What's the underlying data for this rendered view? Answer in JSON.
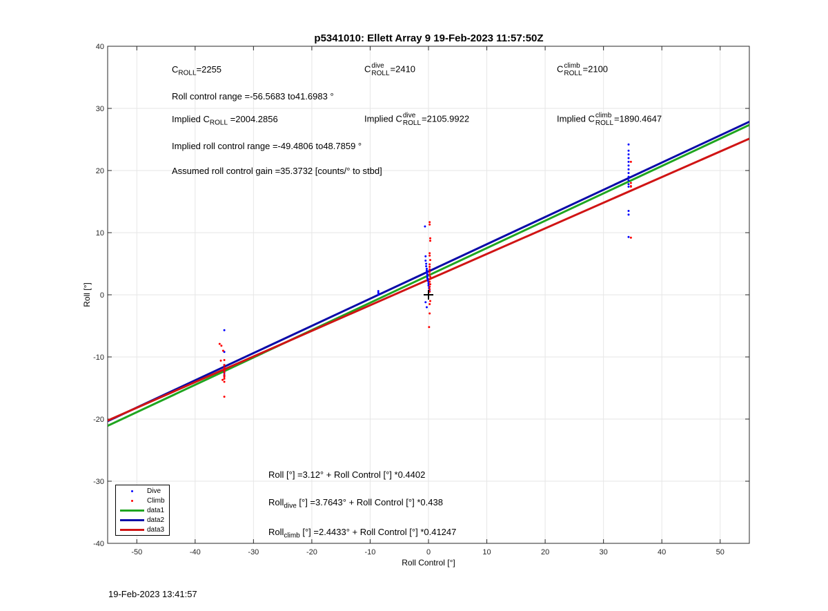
{
  "figure": {
    "title": "p5341010: Ellett Array 9 19-Feb-2023 11:57:50Z",
    "timestamp": "19-Feb-2023 13:41:57"
  },
  "annotations": {
    "c_roll": {
      "base": "C",
      "sub": "ROLL",
      "text": "=2255"
    },
    "c_roll_dive": {
      "base": "C",
      "sup": "dive",
      "sub": "ROLL",
      "text": "=2410"
    },
    "c_roll_climb": {
      "base": "C",
      "sup": "climb",
      "sub": "ROLL",
      "text": "=2100"
    },
    "roll_control_range": "Roll control range =-56.5683 to41.6983 °",
    "implied_c_roll": {
      "prefix": "Implied C",
      "sub": "ROLL",
      "text": " =2004.2856"
    },
    "implied_c_roll_dive": {
      "prefix": "Implied C",
      "sup": "dive",
      "sub": "ROLL",
      "text": "=2105.9922"
    },
    "implied_c_roll_climb": {
      "prefix": "Implied C",
      "sup": "climb",
      "sub": "ROLL",
      "text": "=1890.4647"
    },
    "implied_range": "Implied roll control range =-49.4806 to48.7859 °",
    "gain": "Assumed roll control gain =35.3732 [counts/° to stbd]",
    "fit_all": "Roll [°] =3.12° + Roll Control [°] *0.4402",
    "fit_dive": {
      "prefix": "Roll",
      "sub": "dive",
      "text": " [°] =3.7643° + Roll Control [°] *0.438"
    },
    "fit_climb": {
      "prefix": "Roll",
      "sub": "climb",
      "text": " [°] =2.4433° + Roll Control [°] *0.41247"
    }
  },
  "chart_data": {
    "type": "scatter",
    "xlabel": "Roll Control [°]",
    "ylabel": "Roll [°]",
    "xlim": [
      -55,
      55
    ],
    "ylim": [
      -40,
      40
    ],
    "xticks": [
      -50,
      -40,
      -30,
      -20,
      -10,
      0,
      10,
      20,
      30,
      40,
      50
    ],
    "yticks": [
      -40,
      -30,
      -20,
      -10,
      0,
      10,
      20,
      30,
      40
    ],
    "grid": true,
    "legend_position": "bottom-left",
    "colors": {
      "dive": "#0000ff",
      "climb": "#ff0000",
      "data1": "#1fa51f",
      "data2": "#0a0aa8",
      "data3": "#d01414"
    },
    "series": [
      {
        "name": "Dive",
        "kind": "points",
        "color": "#0000ff",
        "x": [
          -35,
          -35,
          -35,
          -35,
          -35,
          -35,
          -35,
          -35,
          -8.6,
          -8.6,
          -8.6,
          -0.6,
          -0.5,
          -0.5,
          -0.4,
          -0.4,
          -0.3,
          -0.3,
          -0.3,
          -0.2,
          -0.2,
          -0.2,
          -0.1,
          -0.1,
          0,
          0,
          0,
          0.1,
          0.1,
          0.2,
          -0.5,
          -0.3,
          -0.2,
          34.3,
          34.3,
          34.3,
          34.3,
          34.3,
          34.3,
          34.3,
          34.3,
          34.3,
          34.3,
          34.3,
          34.3,
          34.3,
          34.3,
          34.3
        ],
        "y": [
          -5.7,
          -9.2,
          -11.3,
          -11.8,
          -12.1,
          -12.6,
          -13.0,
          -12.3,
          0.0,
          0.3,
          0.6,
          11.0,
          6.2,
          5.5,
          5.0,
          4.6,
          4.2,
          3.9,
          3.6,
          3.3,
          3.0,
          2.7,
          2.5,
          2.3,
          2.1,
          1.8,
          1.5,
          1.2,
          1.0,
          0.6,
          -1.2,
          -2.0,
          3.2,
          24.2,
          23.2,
          22.6,
          22.0,
          21.4,
          20.8,
          20.2,
          19.6,
          19.0,
          18.4,
          17.8,
          17.4,
          13.5,
          12.9,
          9.3
        ]
      },
      {
        "name": "Climb",
        "kind": "points",
        "color": "#ff0000",
        "x": [
          -35.8,
          -35.5,
          -35.2,
          -35.0,
          -35.0,
          -35.0,
          -35.0,
          -35.0,
          -35.0,
          -35.0,
          -35.0,
          -35.0,
          -35.0,
          -35.0,
          -35.6,
          -35.3,
          0.2,
          0.2,
          0.3,
          0.3,
          0.2,
          0.2,
          0.3,
          0.2,
          0.2,
          0.2,
          0.2,
          0.2,
          0.3,
          0.2,
          0.2,
          0.3,
          0.2,
          0.2,
          0.2,
          0.3,
          0.2,
          0.2,
          0.1,
          34.7,
          34.7,
          34.7,
          34.7,
          34.7
        ],
        "y": [
          -7.9,
          -8.2,
          -9.0,
          -10.5,
          -11.3,
          -11.7,
          -12.0,
          -12.2,
          -12.5,
          -12.9,
          -13.2,
          -13.5,
          -14.0,
          -16.4,
          -10.6,
          -13.7,
          11.7,
          11.3,
          9.1,
          8.7,
          6.7,
          6.3,
          5.6,
          4.9,
          4.5,
          4.1,
          3.7,
          3.3,
          2.9,
          2.5,
          2.1,
          1.7,
          1.3,
          0.9,
          0.5,
          -1.0,
          -1.5,
          -3.0,
          -5.2,
          21.4,
          18.0,
          17.5,
          17.4,
          9.2
        ]
      },
      {
        "name": "data1",
        "kind": "line",
        "color": "#1fa51f",
        "x": [
          -55,
          55
        ],
        "y": [
          -21.09,
          27.33
        ]
      },
      {
        "name": "data2",
        "kind": "line",
        "color": "#0a0aa8",
        "x": [
          -55,
          55
        ],
        "y": [
          -20.33,
          27.85
        ]
      },
      {
        "name": "data3",
        "kind": "line",
        "color": "#d01414",
        "x": [
          -55,
          55
        ],
        "y": [
          -20.24,
          25.13
        ]
      }
    ],
    "marker": {
      "x": 0,
      "y": 0,
      "symbol": "+"
    }
  }
}
